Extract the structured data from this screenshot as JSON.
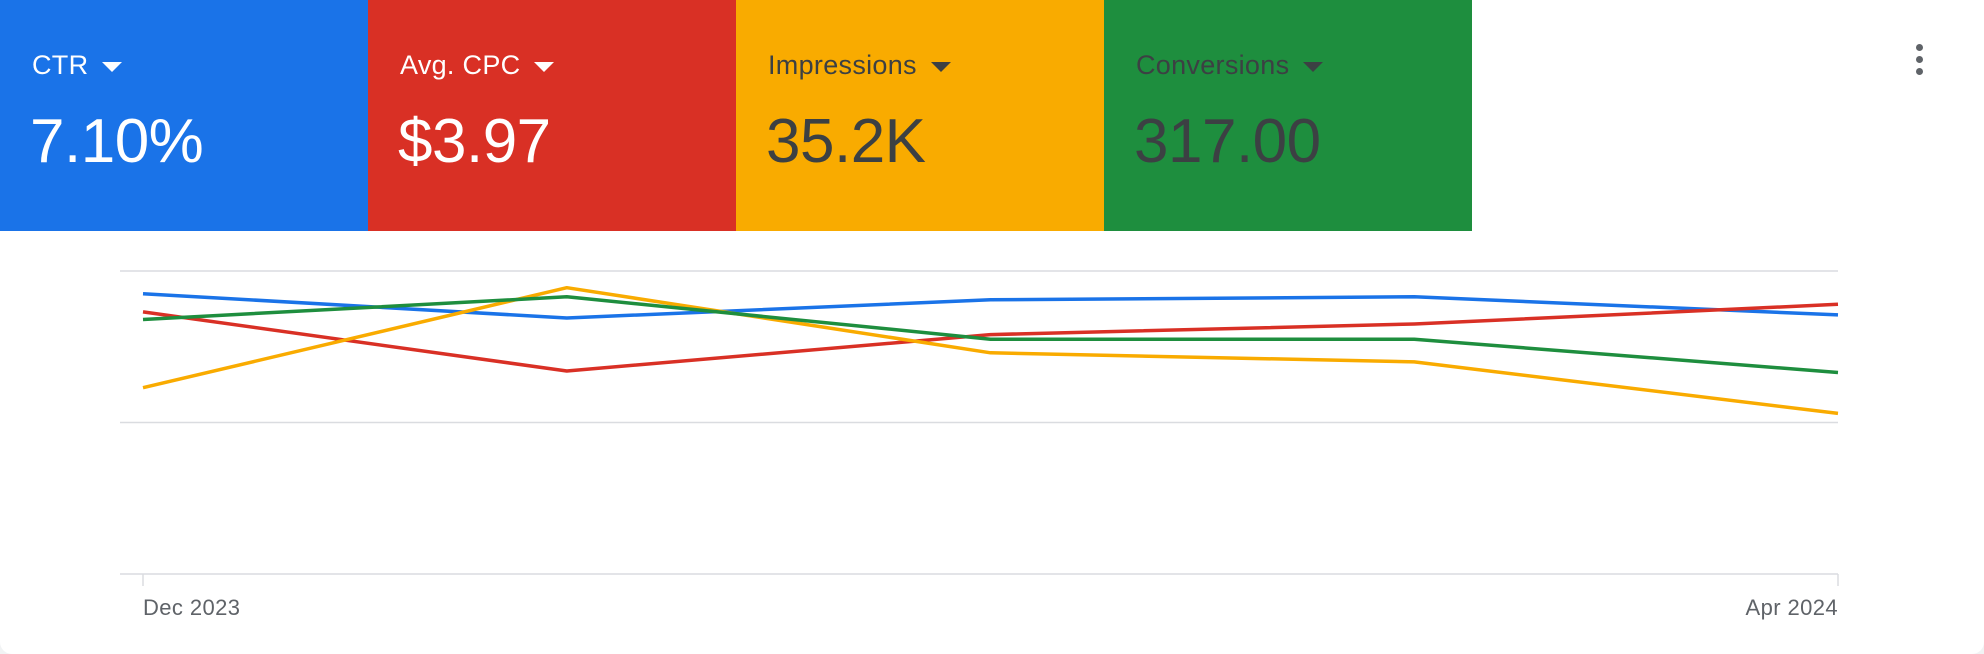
{
  "metrics": [
    {
      "label": "CTR",
      "value": "7.10%",
      "color": "#1a73e8",
      "text_style": "light"
    },
    {
      "label": "Avg. CPC",
      "value": "$3.97",
      "color": "#d93025",
      "text_style": "light"
    },
    {
      "label": "Impressions",
      "value": "35.2K",
      "color": "#f9ab00",
      "text_style": "dark"
    },
    {
      "label": "Conversions",
      "value": "317.00",
      "color": "#1e8e3e",
      "text_style": "dark"
    }
  ],
  "more_menu_icon": "more-vert-icon",
  "chart_data": {
    "type": "line",
    "x": [
      "Dec 2023",
      "",
      "",
      "",
      "Apr 2024"
    ],
    "x_tick_labels": [
      "Dec 2023",
      "Apr 2024"
    ],
    "y_axis_labels_visible": false,
    "ylim": [
      0,
      1
    ],
    "gridlines": [
      1.0,
      0.5,
      0.0
    ],
    "series": [
      {
        "metric": "CTR",
        "color": "#1a73e8",
        "values": [
          0.925,
          0.845,
          0.905,
          0.915,
          0.855
        ]
      },
      {
        "metric": "Avg. CPC",
        "color": "#d93025",
        "values": [
          0.865,
          0.67,
          0.79,
          0.825,
          0.89
        ]
      },
      {
        "metric": "Impressions",
        "color": "#f9ab00",
        "values": [
          0.615,
          0.945,
          0.73,
          0.7,
          0.53
        ]
      },
      {
        "metric": "Conversions",
        "color": "#1e8e3e",
        "values": [
          0.84,
          0.915,
          0.775,
          0.775,
          0.665
        ]
      }
    ]
  }
}
